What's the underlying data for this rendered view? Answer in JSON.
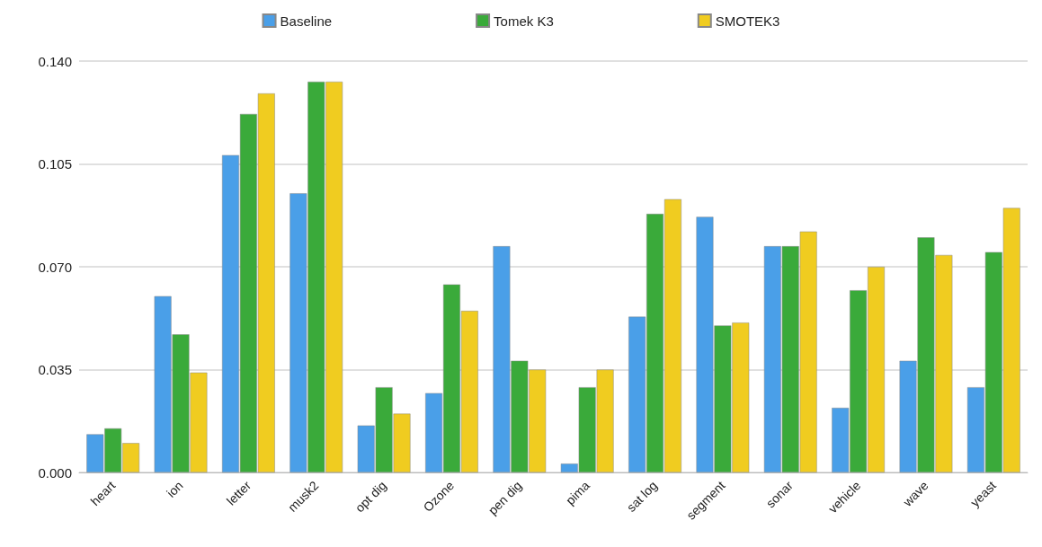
{
  "chart_data": {
    "type": "bar",
    "categories": [
      "heart",
      "ion",
      "letter",
      "musk2",
      "opt dig",
      "Ozone",
      "pen dig",
      "pima",
      "sat log",
      "segment",
      "sonar",
      "vehicle",
      "wave",
      "yeast"
    ],
    "series": [
      {
        "name": "Baseline",
        "color": "#4a9fe8",
        "values": [
          0.013,
          0.06,
          0.108,
          0.095,
          0.016,
          0.027,
          0.077,
          0.003,
          0.053,
          0.087,
          0.077,
          0.022,
          0.038,
          0.029
        ]
      },
      {
        "name": "Tomek K3",
        "color": "#3aaa3a",
        "values": [
          0.015,
          0.047,
          0.122,
          0.133,
          0.029,
          0.064,
          0.038,
          0.029,
          0.088,
          0.05,
          0.077,
          0.062,
          0.08,
          0.075
        ]
      },
      {
        "name": "SMOTEK3",
        "color": "#f0cc20",
        "values": [
          0.01,
          0.034,
          0.129,
          0.133,
          0.02,
          0.055,
          0.035,
          0.035,
          0.093,
          0.051,
          0.082,
          0.07,
          0.074,
          0.09
        ]
      }
    ],
    "ylim": [
      0,
      0.14
    ],
    "yticks": [
      {
        "value": 0,
        "label": "0.000"
      },
      {
        "value": 0.035,
        "label": "0.035"
      },
      {
        "value": 0.07,
        "label": "0.070"
      },
      {
        "value": 0.105,
        "label": "0.105"
      },
      {
        "value": 0.14,
        "label": "0.140"
      }
    ],
    "grid": "y",
    "legend": "top"
  }
}
